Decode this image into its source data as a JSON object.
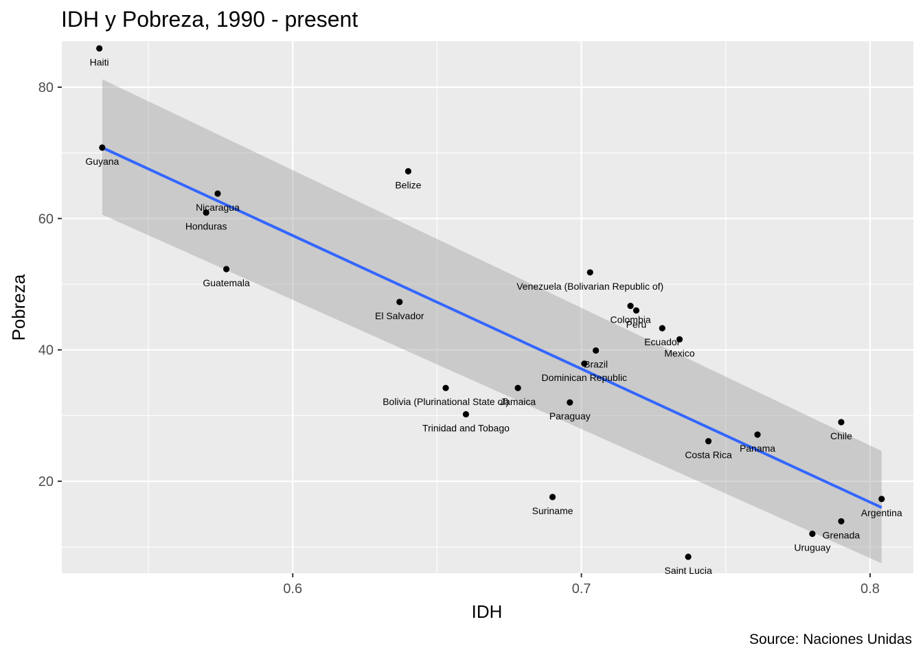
{
  "title": "IDH y Pobreza, 1990 - present",
  "caption": "Source: Naciones Unidas",
  "chart_data": {
    "type": "scatter",
    "title": "IDH y Pobreza, 1990 - present",
    "xlabel": "IDH",
    "ylabel": "Pobreza",
    "xlim": [
      0.52,
      0.815
    ],
    "ylim": [
      6,
      87
    ],
    "xticks": [
      0.6,
      0.7,
      0.8
    ],
    "xtick_labels": [
      "0.6",
      "0.7",
      "0.8"
    ],
    "yticks": [
      20,
      40,
      60,
      80
    ],
    "ytick_labels": [
      "20",
      "40",
      "60",
      "80"
    ],
    "grid": true,
    "points": [
      {
        "label": "Haiti",
        "x": 0.533,
        "y": 85.9
      },
      {
        "label": "Guyana",
        "x": 0.534,
        "y": 70.8
      },
      {
        "label": "Belize",
        "x": 0.64,
        "y": 67.2
      },
      {
        "label": "Nicaragua",
        "x": 0.574,
        "y": 63.8
      },
      {
        "label": "Honduras",
        "x": 0.57,
        "y": 60.9
      },
      {
        "label": "Guatemala",
        "x": 0.577,
        "y": 52.3
      },
      {
        "label": "El Salvador",
        "x": 0.637,
        "y": 47.3
      },
      {
        "label": "Venezuela (Bolivarian Republic of)",
        "x": 0.703,
        "y": 51.8
      },
      {
        "label": "Colombia",
        "x": 0.717,
        "y": 46.7
      },
      {
        "label": "Peru",
        "x": 0.719,
        "y": 46.0
      },
      {
        "label": "Ecuador",
        "x": 0.728,
        "y": 43.3
      },
      {
        "label": "Mexico",
        "x": 0.734,
        "y": 41.6
      },
      {
        "label": "Brazil",
        "x": 0.705,
        "y": 39.9
      },
      {
        "label": "Dominican Republic",
        "x": 0.701,
        "y": 37.9
      },
      {
        "label": "Bolivia (Plurinational State of)",
        "x": 0.653,
        "y": 34.2
      },
      {
        "label": "Jamaica",
        "x": 0.678,
        "y": 34.2
      },
      {
        "label": "Trinidad and Tobago",
        "x": 0.66,
        "y": 30.2
      },
      {
        "label": "Paraguay",
        "x": 0.696,
        "y": 32.0
      },
      {
        "label": "Chile",
        "x": 0.79,
        "y": 29.0
      },
      {
        "label": "Panama",
        "x": 0.761,
        "y": 27.1
      },
      {
        "label": "Costa Rica",
        "x": 0.744,
        "y": 26.1
      },
      {
        "label": "Suriname",
        "x": 0.69,
        "y": 17.6
      },
      {
        "label": "Argentina",
        "x": 0.804,
        "y": 17.3
      },
      {
        "label": "Grenada",
        "x": 0.79,
        "y": 13.9
      },
      {
        "label": "Uruguay",
        "x": 0.78,
        "y": 12.0
      },
      {
        "label": "Saint Lucia",
        "x": 0.737,
        "y": 8.5
      }
    ],
    "trend": {
      "method": "linear",
      "x": [
        0.534,
        0.804
      ],
      "y": [
        70.8,
        16.0
      ],
      "ci_upper": [
        81.2,
        24.6
      ],
      "ci_lower": [
        60.6,
        7.5
      ],
      "line_color": "#3366FF",
      "band_color": "#999999"
    },
    "point_color": "#000000",
    "panel_color": "#EBEBEB",
    "grid_color": "#FFFFFF"
  }
}
